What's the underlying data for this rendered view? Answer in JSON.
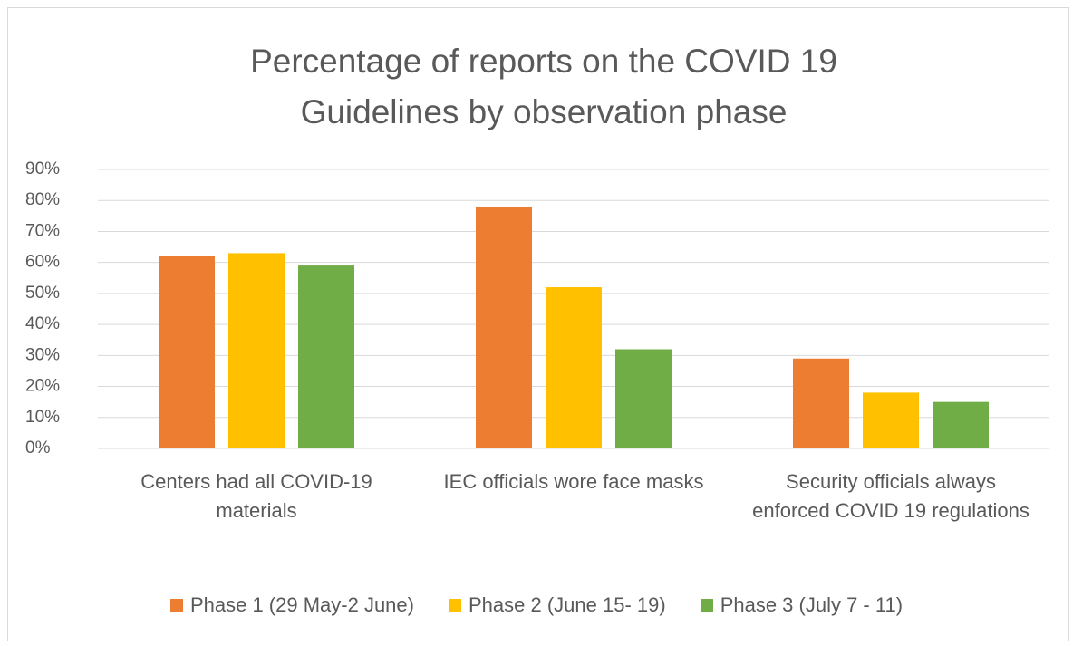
{
  "chart_data": {
    "type": "bar",
    "title": "Percentage of reports on the COVID 19 Guidelines by observation phase",
    "categories": [
      "Centers had all COVID-19 materials",
      "IEC officials wore face masks",
      "Security officials always enforced COVID 19 regulations"
    ],
    "series": [
      {
        "name": "Phase 1 (29 May-2 June)",
        "color": "#ed7d31",
        "values": [
          62,
          78,
          29
        ]
      },
      {
        "name": "Phase 2 (June 15- 19)",
        "color": "#ffc000",
        "values": [
          63,
          52,
          18
        ]
      },
      {
        "name": "Phase 3 (July 7 - 11)",
        "color": "#70ad47",
        "values": [
          59,
          32,
          15
        ]
      }
    ],
    "ylim": [
      0,
      90
    ],
    "yticks": [
      {
        "value": 0,
        "label": "0%"
      },
      {
        "value": 10,
        "label": "10%"
      },
      {
        "value": 20,
        "label": "20%"
      },
      {
        "value": 30,
        "label": "30%"
      },
      {
        "value": 40,
        "label": "40%"
      },
      {
        "value": 50,
        "label": "50%"
      },
      {
        "value": 60,
        "label": "60%"
      },
      {
        "value": 70,
        "label": "70%"
      },
      {
        "value": 80,
        "label": "80%"
      },
      {
        "value": 90,
        "label": "90%"
      }
    ],
    "grid": true,
    "legend": "bottom"
  }
}
